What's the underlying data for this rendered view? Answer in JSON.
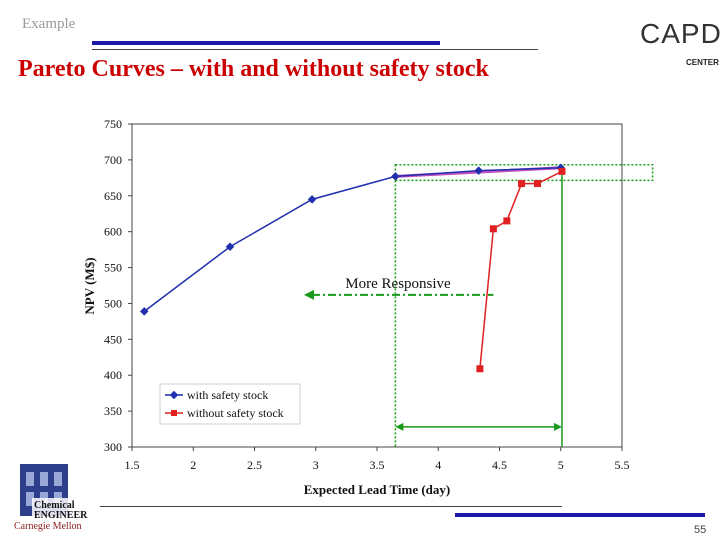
{
  "header": {
    "section": "Example",
    "title": "Pareto Curves – with and without safety stock"
  },
  "logo": {
    "text": "CAPD",
    "subtext": "CENTER"
  },
  "footer": {
    "page": "55",
    "institution": "Carnegie Mellon"
  },
  "chart_data": {
    "type": "line",
    "xlabel": "Expected Lead Time (day)",
    "ylabel": "NPV (M$)",
    "xlim": [
      1.5,
      5.5
    ],
    "ylim": [
      300,
      750
    ],
    "xticks": [
      1.5,
      2,
      2.5,
      3,
      3.5,
      4,
      4.5,
      5,
      5.5
    ],
    "yticks": [
      300,
      350,
      400,
      450,
      500,
      550,
      600,
      650,
      700,
      750
    ],
    "grid": false,
    "legend_position": "lower-left",
    "series": [
      {
        "name": "with safety stock",
        "color": "#1f2fae",
        "marker": "diamond",
        "x": [
          1.6,
          2.3,
          2.97,
          3.65,
          4.33,
          5.0
        ],
        "y": [
          489,
          579,
          645,
          677,
          685,
          689
        ]
      },
      {
        "name": "without safety stock",
        "color": "#e02020",
        "marker": "square",
        "x": [
          4.34,
          4.45,
          4.56,
          4.68,
          4.81,
          5.01
        ],
        "y": [
          409,
          604,
          615,
          667,
          667,
          684
        ]
      }
    ],
    "annotations": {
      "arrow_label": "More Responsive"
    },
    "accent_colors": {
      "highlight_line": "#c050c0",
      "guide": "#1a9a1a"
    }
  }
}
